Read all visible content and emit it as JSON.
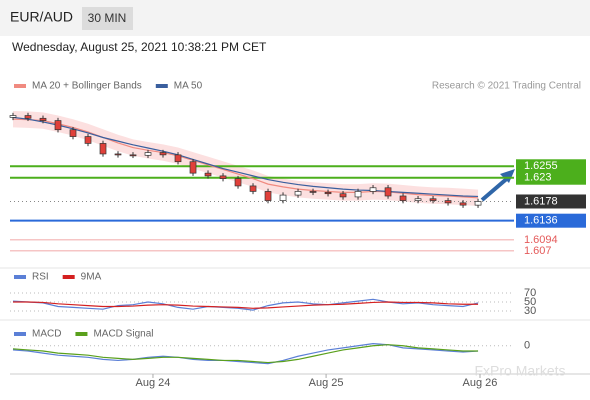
{
  "header": {
    "symbol": "EUR/AUD",
    "interval": "30 MIN"
  },
  "date": "Wednesday, August 25, 2021 10:38:21 PM CET",
  "credit": "Research © 2021 Trading Central",
  "watermark": "FxPro Markets",
  "chart_data": [
    {
      "type": "candlestick",
      "x": [
        0,
        1,
        2,
        3,
        4,
        5,
        6,
        7,
        8,
        9,
        10,
        11,
        12,
        13,
        14,
        15,
        16,
        17,
        18,
        19,
        20,
        21,
        22,
        23,
        24,
        25,
        26,
        27,
        28,
        29,
        30,
        31
      ],
      "open": [
        1.6362,
        1.6366,
        1.636,
        1.6355,
        1.6335,
        1.632,
        1.6305,
        1.6282,
        1.628,
        1.6279,
        1.6285,
        1.628,
        1.6265,
        1.624,
        1.6234,
        1.6228,
        1.6212,
        1.62,
        1.618,
        1.6192,
        1.62,
        1.6198,
        1.6195,
        1.6188,
        1.62,
        1.6208,
        1.619,
        1.618,
        1.6184,
        1.618,
        1.6175,
        1.617
      ],
      "high": [
        1.6372,
        1.6372,
        1.6366,
        1.6361,
        1.6341,
        1.6326,
        1.6311,
        1.6288,
        1.6286,
        1.6291,
        1.6291,
        1.6286,
        1.6271,
        1.6246,
        1.624,
        1.6234,
        1.6218,
        1.6206,
        1.6198,
        1.6206,
        1.6206,
        1.6204,
        1.6201,
        1.6206,
        1.6214,
        1.6214,
        1.6196,
        1.619,
        1.619,
        1.6186,
        1.6181,
        1.6184
      ],
      "low": [
        1.6356,
        1.6354,
        1.6349,
        1.6329,
        1.6314,
        1.6299,
        1.6276,
        1.6274,
        1.6273,
        1.6273,
        1.6274,
        1.6259,
        1.6234,
        1.6228,
        1.6222,
        1.6206,
        1.6194,
        1.6174,
        1.6174,
        1.6186,
        1.6192,
        1.6189,
        1.6182,
        1.6182,
        1.6194,
        1.6184,
        1.6174,
        1.6174,
        1.6174,
        1.6169,
        1.6164,
        1.6164
      ],
      "close": [
        1.6366,
        1.636,
        1.6355,
        1.6335,
        1.632,
        1.6305,
        1.6282,
        1.628,
        1.6279,
        1.6285,
        1.628,
        1.6265,
        1.624,
        1.6234,
        1.6228,
        1.6212,
        1.62,
        1.618,
        1.6192,
        1.62,
        1.6198,
        1.6195,
        1.6188,
        1.62,
        1.6208,
        1.619,
        1.618,
        1.6184,
        1.618,
        1.6175,
        1.617,
        1.6178
      ],
      "up_color": "#ffffff",
      "down_color": "#e0403a",
      "bands": {
        "color": "#fbd3d3",
        "upper": [
          1.6376,
          1.6375,
          1.6373,
          1.6366,
          1.6358,
          1.6348,
          1.6336,
          1.6324,
          1.6314,
          1.6308,
          1.6303,
          1.6296,
          1.6286,
          1.6276,
          1.6266,
          1.6256,
          1.6246,
          1.6234,
          1.6228,
          1.6223,
          1.622,
          1.6218,
          1.6216,
          1.6216,
          1.6218,
          1.6217,
          1.6214,
          1.6211,
          1.6209,
          1.6208,
          1.6206,
          1.6204
        ],
        "lower": [
          1.634,
          1.6339,
          1.6337,
          1.633,
          1.6322,
          1.6312,
          1.63,
          1.6288,
          1.6278,
          1.6272,
          1.6267,
          1.626,
          1.625,
          1.624,
          1.623,
          1.622,
          1.621,
          1.6198,
          1.6192,
          1.6187,
          1.6184,
          1.6182,
          1.618,
          1.618,
          1.6182,
          1.6181,
          1.6178,
          1.6175,
          1.6173,
          1.6172,
          1.617,
          1.6168
        ]
      },
      "series": [
        {
          "name": "MA 20 + Bollinger Bands",
          "color": "#f08a80",
          "values": [
            1.6358,
            1.6357,
            1.6355,
            1.6348,
            1.634,
            1.633,
            1.6318,
            1.6306,
            1.6296,
            1.629,
            1.6285,
            1.6278,
            1.6268,
            1.6258,
            1.6248,
            1.6238,
            1.6228,
            1.6216,
            1.621,
            1.6205,
            1.6202,
            1.62,
            1.6198,
            1.6198,
            1.62,
            1.6199,
            1.6196,
            1.6193,
            1.6191,
            1.619,
            1.6188,
            1.6186
          ]
        },
        {
          "name": "MA 50",
          "color": "#3a5f9e",
          "values": [
            1.6362,
            1.6358,
            1.6352,
            1.6345,
            1.6337,
            1.6328,
            1.6318,
            1.631,
            1.6302,
            1.6295,
            1.6288,
            1.628,
            1.627,
            1.626,
            1.625,
            1.6242,
            1.6234,
            1.6226,
            1.622,
            1.6215,
            1.6211,
            1.6208,
            1.6205,
            1.6203,
            1.6202,
            1.62,
            1.6198,
            1.6196,
            1.6194,
            1.6192,
            1.619,
            1.6189
          ]
        }
      ],
      "levels": [
        {
          "value": 1.6255,
          "color": "#4caf1c",
          "style": "solid"
        },
        {
          "value": 1.623,
          "color": "#4caf1c",
          "style": "solid"
        },
        {
          "value": 1.6178,
          "color": "#333333",
          "style": "dotted"
        },
        {
          "value": 1.6136,
          "color": "#2a6ad9",
          "style": "solid"
        },
        {
          "value": 1.6094,
          "color": "#e45a5a",
          "style": "thin"
        },
        {
          "value": 1.607,
          "color": "#e45a5a",
          "style": "thin"
        }
      ],
      "xlim": [
        -0.2,
        33.13
      ],
      "ylim": [
        1.605,
        1.64
      ],
      "xticks": [
        {
          "value": 9.33,
          "label": "Aug 24"
        },
        {
          "value": 20.87,
          "label": "Aug 25"
        },
        {
          "value": 31.13,
          "label": "Aug 26"
        }
      ]
    },
    {
      "type": "line",
      "x": [
        0,
        1,
        2,
        3,
        4,
        5,
        6,
        7,
        8,
        9,
        10,
        11,
        12,
        13,
        14,
        15,
        16,
        17,
        18,
        19,
        20,
        21,
        22,
        23,
        24,
        25,
        26,
        27,
        28,
        29,
        30,
        31
      ],
      "series": [
        {
          "name": "RSI",
          "color": "#5b7fd6",
          "values": [
            52,
            50,
            48,
            40,
            38,
            36,
            34,
            42,
            44,
            50,
            46,
            38,
            34,
            40,
            38,
            36,
            32,
            42,
            48,
            50,
            46,
            44,
            48,
            52,
            56,
            50,
            46,
            48,
            44,
            42,
            40,
            48
          ]
        },
        {
          "name": "9MA",
          "color": "#d42020",
          "values": [
            50,
            50,
            49,
            46,
            44,
            42,
            40,
            40,
            41,
            43,
            44,
            43,
            41,
            40,
            39,
            38,
            36,
            37,
            39,
            41,
            43,
            44,
            45,
            47,
            49,
            50,
            49,
            49,
            48,
            46,
            45,
            45
          ]
        }
      ],
      "xlim": [
        -0.2,
        33.13
      ],
      "ylim": [
        10,
        90
      ],
      "yticks": [
        30,
        50,
        70
      ]
    },
    {
      "type": "line",
      "x": [
        0,
        1,
        2,
        3,
        4,
        5,
        6,
        7,
        8,
        9,
        10,
        11,
        12,
        13,
        14,
        15,
        16,
        17,
        18,
        19,
        20,
        21,
        22,
        23,
        24,
        25,
        26,
        27,
        28,
        29,
        30,
        31
      ],
      "series": [
        {
          "name": "MACD",
          "color": "#5b7fd6",
          "values": [
            -0.0004,
            -0.0005,
            -0.0007,
            -0.0009,
            -0.001,
            -0.0011,
            -0.0013,
            -0.0014,
            -0.0013,
            -0.0011,
            -0.001,
            -0.0011,
            -0.0013,
            -0.0014,
            -0.0014,
            -0.0015,
            -0.0016,
            -0.0017,
            -0.0014,
            -0.001,
            -0.0007,
            -0.0004,
            -0.0002,
            0.0,
            0.0002,
            0.0001,
            -0.0002,
            -0.0003,
            -0.0004,
            -0.0005,
            -0.0006,
            -0.0005
          ]
        },
        {
          "name": "MACD Signal",
          "color": "#5aa01c",
          "values": [
            -0.0003,
            -0.0004,
            -0.0005,
            -0.0007,
            -0.0008,
            -0.0009,
            -0.0011,
            -0.0012,
            -0.0013,
            -0.0012,
            -0.0011,
            -0.0011,
            -0.0012,
            -0.0013,
            -0.0014,
            -0.0014,
            -0.0015,
            -0.0016,
            -0.0015,
            -0.0013,
            -0.001,
            -0.0007,
            -0.0004,
            -0.0002,
            0.0,
            0.0001,
            0.0,
            -0.0002,
            -0.0003,
            -0.0004,
            -0.0005,
            -0.0005
          ]
        }
      ],
      "xlim": [
        -0.2,
        33.13
      ],
      "ylim": [
        -0.0025,
        0.0015
      ],
      "yticks": [
        0
      ]
    }
  ]
}
